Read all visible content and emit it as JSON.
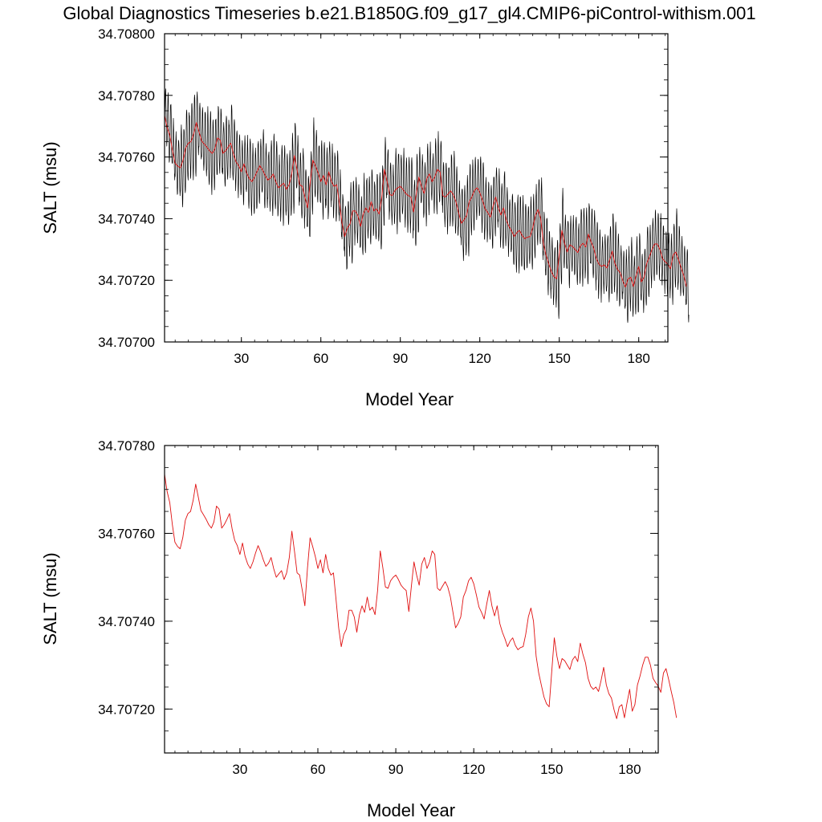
{
  "title": "Global Diagnostics Timeseries b.e21.B1850G.f09_g17_gl4.CMIP6-piControl-withism.001",
  "chart_data": [
    {
      "type": "line",
      "xlabel": "Model Year",
      "ylabel": "SALT (msu)",
      "xlim": [
        1,
        191
      ],
      "ylim": [
        34.707,
        34.708
      ],
      "x_ticks": [
        30,
        60,
        90,
        120,
        150,
        180
      ],
      "y_ticks": [
        34.707,
        34.7072,
        34.7074,
        34.7076,
        34.7078,
        34.708
      ],
      "y_tick_labels": [
        "34.70700",
        "34.70720",
        "34.70740",
        "34.70760",
        "34.70780",
        "34.70800"
      ],
      "series": [
        {
          "color": "#000000",
          "sampling": "monthly",
          "seasonal_amplitude": 0.00012,
          "annual_mean_values": "same as the red annual series"
        },
        {
          "color": "#e01010",
          "sampling": "annual",
          "x_start": 1,
          "x_step": 1,
          "values_ref": "annual_mean_values"
        }
      ]
    },
    {
      "type": "line",
      "xlabel": "Model Year",
      "ylabel": "SALT (msu)",
      "xlim": [
        1,
        191
      ],
      "ylim": [
        34.7071,
        34.7078
      ],
      "x_ticks": [
        30,
        60,
        90,
        120,
        150,
        180
      ],
      "y_ticks": [
        34.7072,
        34.7074,
        34.7076,
        34.7078
      ],
      "y_tick_labels": [
        "34.70720",
        "34.70740",
        "34.70760",
        "34.70780"
      ],
      "series": [
        {
          "color": "#e01010",
          "sampling": "annual",
          "x_start": 1,
          "x_step": 1,
          "values_ref": "annual_mean_values"
        }
      ]
    }
  ],
  "annual_mean_values": [
    34.707735,
    34.707695,
    34.70767,
    34.70762,
    34.70758,
    34.70757,
    34.707565,
    34.70759,
    34.70763,
    34.707645,
    34.70765,
    34.707675,
    34.707712,
    34.707682,
    34.707652,
    34.707642,
    34.707632,
    34.70762,
    34.707612,
    34.707626,
    34.707662,
    34.707655,
    34.707612,
    34.70762,
    34.707632,
    34.707645,
    34.70761,
    34.707584,
    34.707572,
    34.707552,
    34.707578,
    34.707548,
    34.70753,
    34.70752,
    34.707535,
    34.707555,
    34.707572,
    34.707558,
    34.70754,
    34.707525,
    34.707532,
    34.707545,
    34.70752,
    34.7075,
    34.707508,
    34.707515,
    34.707495,
    34.70751,
    34.707545,
    34.707605,
    34.70756,
    34.70751,
    34.707505,
    34.70747,
    34.707435,
    34.70752,
    34.70759,
    34.70757,
    34.707548,
    34.70752,
    34.70754,
    34.70751,
    34.707552,
    34.70752,
    34.707505,
    34.70751,
    34.70745,
    34.707385,
    34.707342,
    34.70737,
    34.707382,
    34.707425,
    34.707425,
    34.70741,
    34.707375,
    34.707415,
    34.707435,
    34.70742,
    34.707455,
    34.707425,
    34.707432,
    34.707415,
    34.70747,
    34.70756,
    34.707522,
    34.707478,
    34.707475,
    34.707492,
    34.7075,
    34.707505,
    34.707495,
    34.707482,
    34.707475,
    34.70747,
    34.707422,
    34.70748,
    34.707535,
    34.707505,
    34.707482,
    34.70753,
    34.707545,
    34.70752,
    34.707535,
    34.70756,
    34.707552,
    34.707475,
    34.70747,
    34.70748,
    34.70749,
    34.707478,
    34.707455,
    34.70742,
    34.707385,
    34.707395,
    34.70741,
    34.707455,
    34.70747,
    34.707492,
    34.7075,
    34.707485,
    34.70746,
    34.707432,
    34.70742,
    34.707405,
    34.70744,
    34.70747,
    34.707435,
    34.707412,
    34.707435,
    34.707395,
    34.707375,
    34.70736,
    34.707342,
    34.707355,
    34.707362,
    34.707345,
    34.707335,
    34.70734,
    34.707342,
    34.70737,
    34.70741,
    34.70743,
    34.7074,
    34.70732,
    34.707282,
    34.707255,
    34.707228,
    34.707212,
    34.707205,
    34.707285,
    34.707362,
    34.70732,
    34.707292,
    34.707315,
    34.70731,
    34.7073,
    34.70729,
    34.707312,
    34.70732,
    34.707308,
    34.70735,
    34.707325,
    34.707305,
    34.70727,
    34.707252,
    34.707245,
    34.70725,
    34.70724,
    34.707265,
    34.707295,
    34.707255,
    34.707235,
    34.707225,
    34.707198,
    34.707178,
    34.707205,
    34.70721,
    34.70718,
    34.707215,
    34.707245,
    34.707195,
    34.70721,
    34.707255,
    34.707275,
    34.7073,
    34.707318,
    34.707318,
    34.7073,
    34.70727,
    34.70726,
    34.707252,
    34.707238,
    34.707282,
    34.707292,
    34.707268,
    34.70724,
    34.707215,
    34.70718
  ]
}
